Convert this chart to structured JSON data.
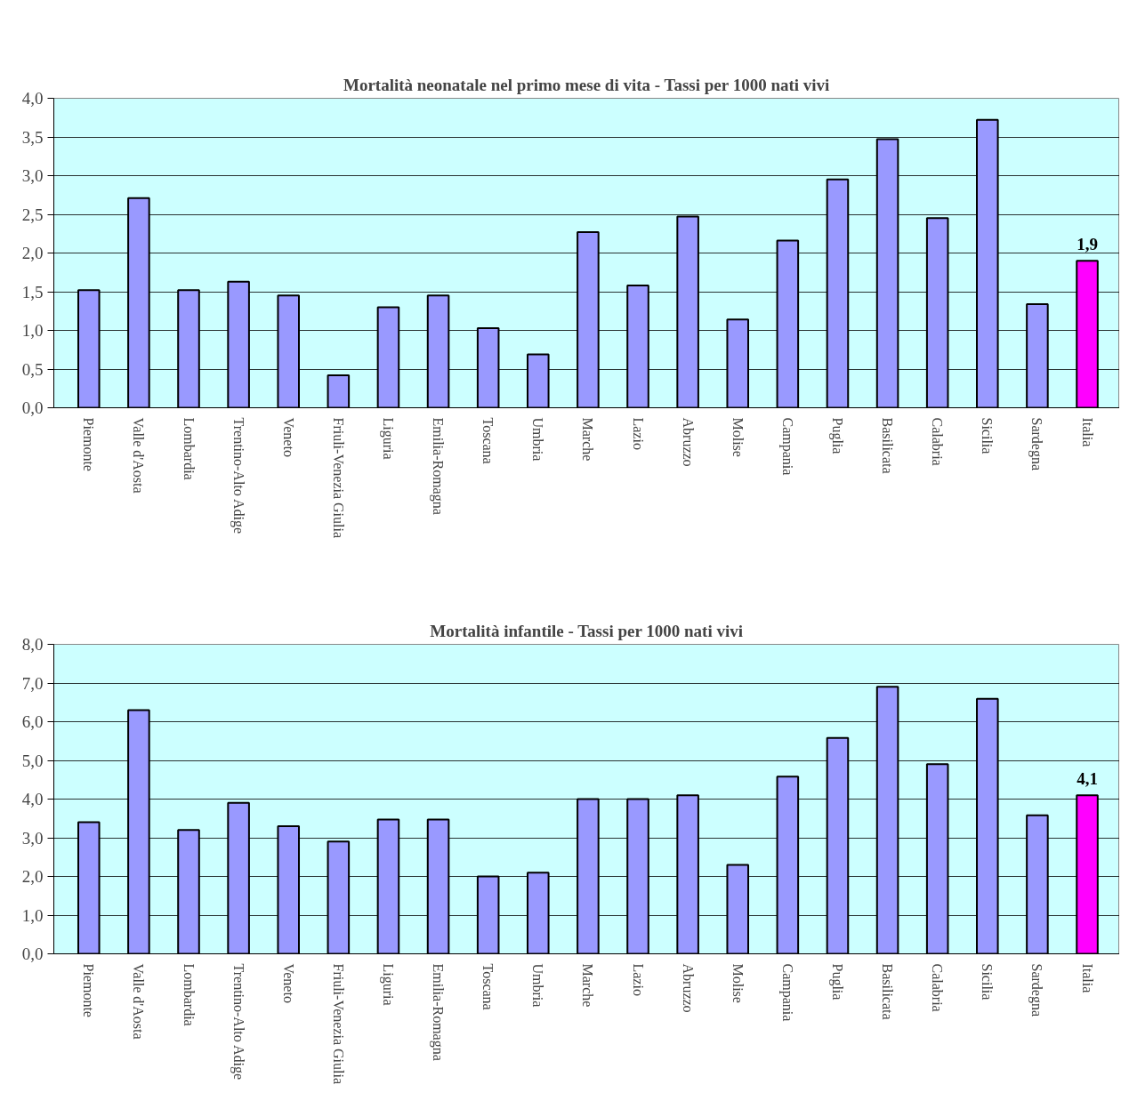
{
  "chart_data": [
    {
      "type": "bar",
      "title": "Mortalità neonatale nel primo mese di vita - Tassi per 1000 nati vivi",
      "categories": [
        "Piemonte",
        "Valle d'Aosta",
        "Lombardia",
        "Trentino-Alto Adige",
        "Veneto",
        "Friuli-Venezia Giulia",
        "Liguria",
        "Emilia-Romagna",
        "Toscana",
        "Umbria",
        "Marche",
        "Lazio",
        "Abruzzo",
        "Molise",
        "Campania",
        "Puglia",
        "Basilicata",
        "Calabria",
        "Sicilia",
        "Sardegna",
        "Italia"
      ],
      "values": [
        1.52,
        2.71,
        1.52,
        1.63,
        1.45,
        0.42,
        1.3,
        1.45,
        1.03,
        0.69,
        2.27,
        1.58,
        2.47,
        1.14,
        2.16,
        2.95,
        3.47,
        2.45,
        3.72,
        1.34,
        1.9
      ],
      "colors": [
        "#9999ff",
        "#9999ff",
        "#9999ff",
        "#9999ff",
        "#9999ff",
        "#9999ff",
        "#9999ff",
        "#9999ff",
        "#9999ff",
        "#9999ff",
        "#9999ff",
        "#9999ff",
        "#9999ff",
        "#9999ff",
        "#9999ff",
        "#9999ff",
        "#9999ff",
        "#9999ff",
        "#9999ff",
        "#9999ff",
        "#ff00ff"
      ],
      "value_labels": [
        null,
        null,
        null,
        null,
        null,
        null,
        null,
        null,
        null,
        null,
        null,
        null,
        null,
        null,
        null,
        null,
        null,
        null,
        null,
        null,
        "1,9"
      ],
      "ylim": [
        0,
        4
      ],
      "yticks": [
        {
          "value": 0,
          "label": "0,0"
        },
        {
          "value": 0.5,
          "label": "0,5"
        },
        {
          "value": 1,
          "label": "1,0"
        },
        {
          "value": 1.5,
          "label": "1,5"
        },
        {
          "value": 2,
          "label": "2,0"
        },
        {
          "value": 2.5,
          "label": "2,5"
        },
        {
          "value": 3,
          "label": "3,0"
        },
        {
          "value": 3.5,
          "label": "3,5"
        },
        {
          "value": 4,
          "label": "4,0"
        }
      ],
      "grid": "y"
    },
    {
      "type": "bar",
      "title": "Mortalità infantile - Tassi per 1000 nati vivi",
      "categories": [
        "Piemonte",
        "Valle d'Aosta",
        "Lombardia",
        "Trentino-Alto Adige",
        "Veneto",
        "Friuli-Venezia Giulia",
        "Liguria",
        "Emilia-Romagna",
        "Toscana",
        "Umbria",
        "Marche",
        "Lazio",
        "Abruzzo",
        "Molise",
        "Campania",
        "Puglia",
        "Basilicata",
        "Calabria",
        "Sicilia",
        "Sardegna",
        "Italia"
      ],
      "values": [
        3.4,
        6.3,
        3.2,
        3.9,
        3.3,
        2.9,
        3.47,
        3.47,
        2.0,
        2.1,
        4.0,
        4.0,
        4.1,
        2.3,
        4.58,
        5.58,
        6.9,
        4.9,
        6.59,
        3.58,
        4.1
      ],
      "colors": [
        "#9999ff",
        "#9999ff",
        "#9999ff",
        "#9999ff",
        "#9999ff",
        "#9999ff",
        "#9999ff",
        "#9999ff",
        "#9999ff",
        "#9999ff",
        "#9999ff",
        "#9999ff",
        "#9999ff",
        "#9999ff",
        "#9999ff",
        "#9999ff",
        "#9999ff",
        "#9999ff",
        "#9999ff",
        "#9999ff",
        "#ff00ff"
      ],
      "value_labels": [
        null,
        null,
        null,
        null,
        null,
        null,
        null,
        null,
        null,
        null,
        null,
        null,
        null,
        null,
        null,
        null,
        null,
        null,
        null,
        null,
        "4,1"
      ],
      "ylim": [
        0,
        8
      ],
      "yticks": [
        {
          "value": 0,
          "label": "0,0"
        },
        {
          "value": 1,
          "label": "1,0"
        },
        {
          "value": 2,
          "label": "2,0"
        },
        {
          "value": 3,
          "label": "3,0"
        },
        {
          "value": 4,
          "label": "4,0"
        },
        {
          "value": 5,
          "label": "5,0"
        },
        {
          "value": 6,
          "label": "6,0"
        },
        {
          "value": 7,
          "label": "7,0"
        },
        {
          "value": 8,
          "label": "8,0"
        }
      ],
      "grid": "y"
    }
  ]
}
